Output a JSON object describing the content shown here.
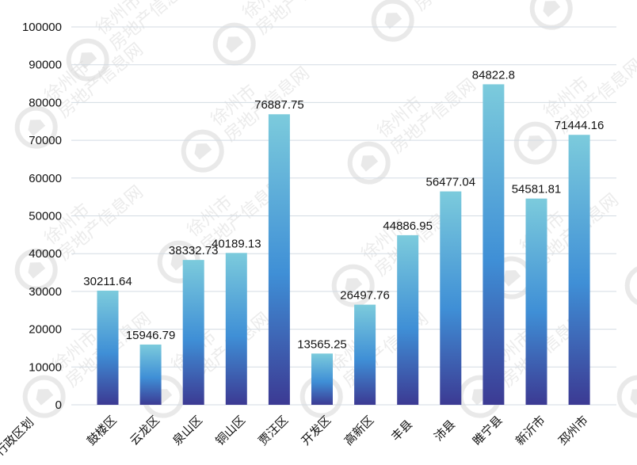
{
  "watermark": {
    "line1": "徐州市",
    "line2": "房地产信息网",
    "icon": "house-seal-icon"
  },
  "chart_data": {
    "type": "bar",
    "xlabel": "行政区划",
    "categories": [
      "鼓楼区",
      "云龙区",
      "泉山区",
      "铜山区",
      "贾汪区",
      "开发区",
      "高新区",
      "丰县",
      "沛县",
      "睢宁县",
      "新沂市",
      "邳州市"
    ],
    "values": [
      30211.64,
      15946.79,
      38332.73,
      40189.13,
      76887.75,
      13565.25,
      26497.76,
      44886.95,
      56477.04,
      84822.8,
      54581.81,
      71444.16
    ],
    "value_labels": [
      "30211.64",
      "15946.79",
      "38332.73",
      "40189.13",
      "76887.75",
      "13565.25",
      "26497.76",
      "44886.95",
      "56477.04",
      "84822.8",
      "54581.81",
      "71444.16"
    ],
    "ylim": [
      0,
      100000
    ],
    "yticks": [
      0,
      10000,
      20000,
      30000,
      40000,
      50000,
      60000,
      70000,
      80000,
      90000,
      100000
    ],
    "grid": true,
    "colors": {
      "bar_top": "#7ccbdc",
      "bar_mid": "#3f8fd6",
      "bar_bottom": "#3c3a93",
      "grid": "#d3dbe3"
    }
  }
}
